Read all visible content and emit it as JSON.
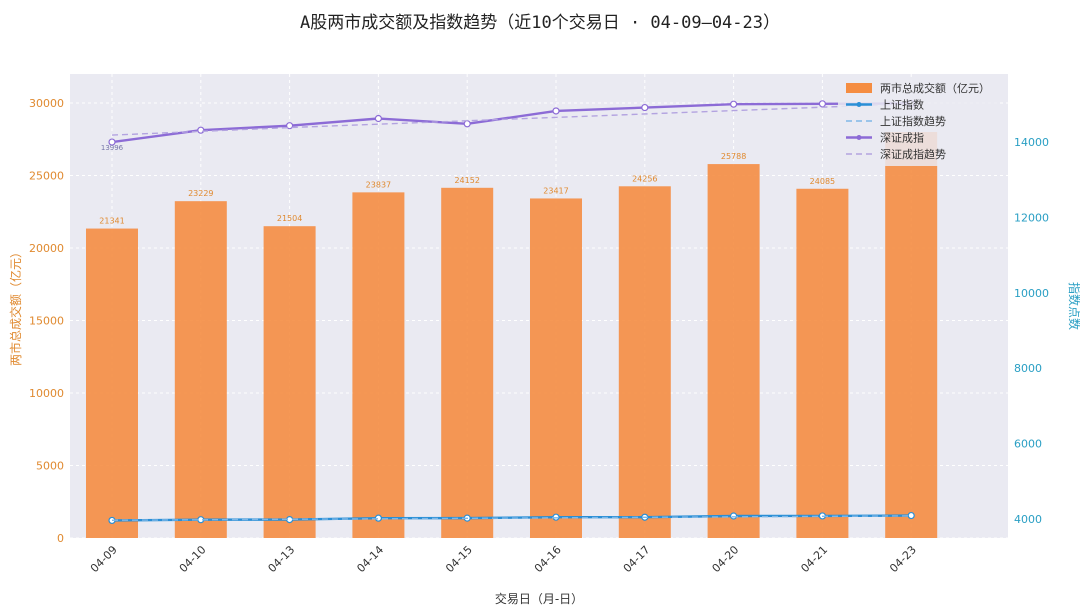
{
  "chart_data": {
    "type": "bar",
    "title": "A股两市成交额及指数趋势（近10个交易日 · 04-09—04-23）",
    "xlabel": "交易日（月-日）",
    "ylabel_left": "两市总成交额（亿元）",
    "ylabel_right": "指数点数",
    "categories": [
      "04-09",
      "04-10",
      "04-13",
      "04-14",
      "04-15",
      "04-16",
      "04-17",
      "04-20",
      "04-21",
      "04-23"
    ],
    "ylim_left": [
      0,
      32000
    ],
    "ylim_right": [
      3500,
      15800
    ],
    "yticks_left": [
      0,
      5000,
      10000,
      15000,
      20000,
      25000,
      30000
    ],
    "yticks_right": [
      4000,
      6000,
      8000,
      10000,
      12000,
      14000
    ],
    "grid": true,
    "legend_position": "top-right",
    "series": [
      {
        "name": "两市总成交额（亿元）",
        "type": "bar",
        "axis": "left",
        "color": "#f58d42",
        "values": [
          21341,
          23229,
          21504,
          23837,
          24152,
          23417,
          24256,
          25788,
          24085,
          28000
        ],
        "labels": [
          "21341",
          "23229",
          "21504",
          "23837",
          "24152",
          "23417",
          "24256",
          "25788",
          "24085",
          ""
        ]
      },
      {
        "name": "上证指数",
        "type": "line",
        "axis": "right",
        "color": "#2a8fd6",
        "values": [
          3966,
          3986,
          3988,
          4026,
          4027,
          4052,
          4051,
          4083,
          4085,
          4095
        ]
      },
      {
        "name": "上证指数趋势",
        "type": "trend",
        "axis": "right",
        "color": "#7fb8e8",
        "values": [
          3970,
          3983,
          3996,
          4009,
          4022,
          4035,
          4048,
          4061,
          4074,
          4087
        ]
      },
      {
        "name": "深证成指",
        "type": "line",
        "axis": "right",
        "color": "#8c6bd6",
        "values": [
          13996,
          14310,
          14430,
          14620,
          14480,
          14820,
          14910,
          15000,
          15010,
          15020
        ]
      },
      {
        "name": "深证成指趋势",
        "type": "trend",
        "axis": "right",
        "color": "#b3a3e0",
        "values": [
          14180,
          14280,
          14380,
          14470,
          14560,
          14650,
          14740,
          14830,
          14920,
          15010
        ]
      }
    ],
    "point_labels": {
      "shenzhen_first": "13996"
    }
  }
}
